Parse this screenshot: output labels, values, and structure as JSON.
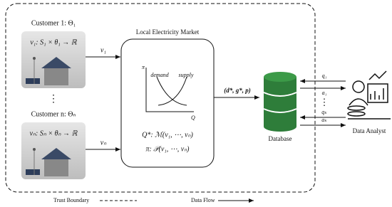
{
  "customers": [
    {
      "label": "Customer 1: Θ₁",
      "function": "v₁: S₁ × θ₁ → ℝ",
      "flow": "v₁"
    },
    {
      "label": "Customer n: Θₙ",
      "function": "vₙ: Sₙ × θₙ → ℝ",
      "flow": "vₙ"
    }
  ],
  "customer_ellipsis": "⋮",
  "market": {
    "title": "Local Electricity Market",
    "y_axis": "π",
    "x_axis": "Q",
    "demand": "demand",
    "supply": "supply",
    "quantity_rule": "Q*: ℳ(v₁, ⋯, vₙ)",
    "price_rule": "π: 𝒫(v₁, ⋯, vₙ)"
  },
  "market_output": "(d*, g*, p)",
  "database": "Database",
  "queries": [
    {
      "query": "q₁",
      "answer": "a₁"
    },
    {
      "query": "qₖ",
      "answer": "aₖ"
    }
  ],
  "query_ellipsis": "⋮",
  "analyst": "Data Analyst",
  "legend": {
    "trust_boundary": "Trust Boundary",
    "data_flow": "Data Flow"
  }
}
